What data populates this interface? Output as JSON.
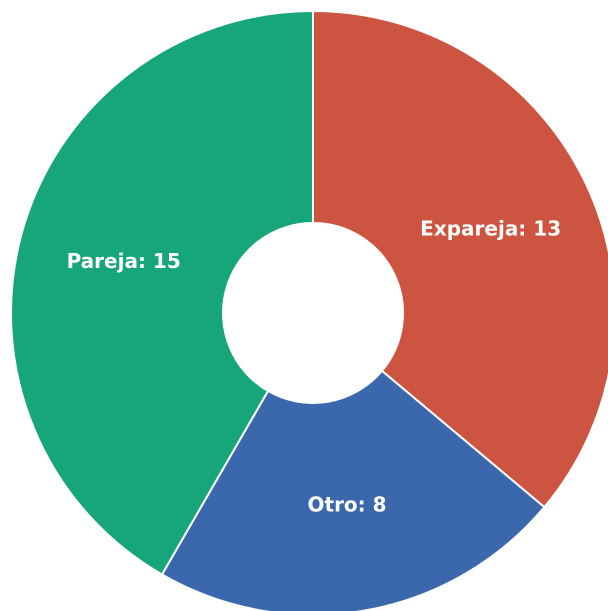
{
  "chart_data": {
    "type": "donut",
    "categories": [
      "Expareja",
      "Otro",
      "Pareja"
    ],
    "values": [
      13,
      8,
      15
    ],
    "value_labels": [
      "Expareja: 13",
      "Otro: 8",
      "Pareja: 15"
    ],
    "colors": [
      "#cc5440",
      "#3b67ad",
      "#17a57a"
    ]
  }
}
